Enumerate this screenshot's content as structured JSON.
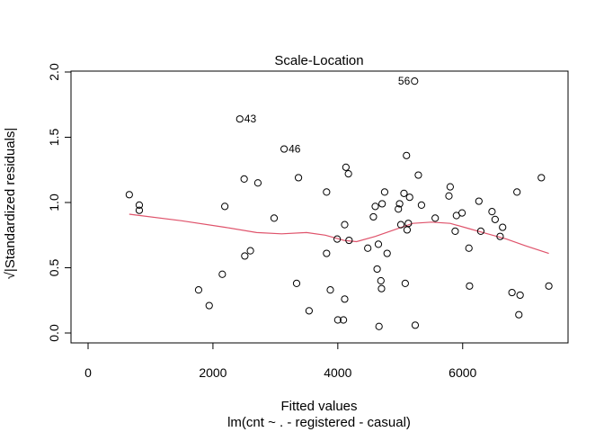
{
  "chart_data": {
    "type": "scatter",
    "title": "Scale-Location",
    "xlabel": "Fitted values",
    "xlabel_sub": "lm(cnt ~ . - registered - casual)",
    "ylabel": "√|Standardized residuals|",
    "xlim": [
      0,
      7400
    ],
    "ylim": [
      0,
      2.0
    ],
    "xticks": [
      0,
      2000,
      4000,
      6000
    ],
    "yticks": [
      0.0,
      0.5,
      1.0,
      1.5,
      2.0
    ],
    "xtick_labels": [
      "0",
      "2000",
      "4000",
      "6000"
    ],
    "ytick_labels": [
      "0.0",
      "0.5",
      "1.0",
      "1.5",
      "2.0"
    ],
    "grid": false,
    "point_color": "#000000",
    "smooth_color": "#DF536B",
    "points": [
      {
        "x": 5230,
        "y": 1.93,
        "label": "56"
      },
      {
        "x": 2430,
        "y": 1.64,
        "label": "43"
      },
      {
        "x": 3140,
        "y": 1.41,
        "label": "46"
      },
      {
        "x": 660,
        "y": 1.06
      },
      {
        "x": 820,
        "y": 0.98
      },
      {
        "x": 820,
        "y": 0.94
      },
      {
        "x": 1770,
        "y": 0.33
      },
      {
        "x": 1940,
        "y": 0.21
      },
      {
        "x": 2150,
        "y": 0.45
      },
      {
        "x": 2190,
        "y": 0.97
      },
      {
        "x": 2500,
        "y": 1.18
      },
      {
        "x": 2510,
        "y": 0.59
      },
      {
        "x": 2600,
        "y": 0.63
      },
      {
        "x": 2720,
        "y": 1.15
      },
      {
        "x": 2980,
        "y": 0.88
      },
      {
        "x": 3340,
        "y": 0.38
      },
      {
        "x": 3370,
        "y": 1.19
      },
      {
        "x": 3540,
        "y": 0.17
      },
      {
        "x": 3820,
        "y": 1.08
      },
      {
        "x": 3820,
        "y": 0.61
      },
      {
        "x": 3880,
        "y": 0.33
      },
      {
        "x": 3990,
        "y": 0.72
      },
      {
        "x": 4000,
        "y": 0.1
      },
      {
        "x": 4090,
        "y": 0.1
      },
      {
        "x": 4110,
        "y": 0.83
      },
      {
        "x": 4110,
        "y": 0.26
      },
      {
        "x": 4130,
        "y": 1.27
      },
      {
        "x": 4170,
        "y": 1.22
      },
      {
        "x": 4180,
        "y": 0.71
      },
      {
        "x": 4480,
        "y": 0.65
      },
      {
        "x": 4570,
        "y": 0.89
      },
      {
        "x": 4600,
        "y": 0.97
      },
      {
        "x": 4630,
        "y": 0.49
      },
      {
        "x": 4650,
        "y": 0.68
      },
      {
        "x": 4660,
        "y": 0.05
      },
      {
        "x": 4690,
        "y": 0.4
      },
      {
        "x": 4700,
        "y": 0.34
      },
      {
        "x": 4710,
        "y": 0.99
      },
      {
        "x": 4750,
        "y": 1.08
      },
      {
        "x": 4790,
        "y": 0.61
      },
      {
        "x": 4970,
        "y": 0.95
      },
      {
        "x": 4990,
        "y": 0.99
      },
      {
        "x": 5010,
        "y": 0.83
      },
      {
        "x": 5060,
        "y": 1.07
      },
      {
        "x": 5080,
        "y": 0.38
      },
      {
        "x": 5100,
        "y": 1.36
      },
      {
        "x": 5110,
        "y": 0.79
      },
      {
        "x": 5130,
        "y": 0.84
      },
      {
        "x": 5150,
        "y": 1.04
      },
      {
        "x": 5240,
        "y": 0.06
      },
      {
        "x": 5290,
        "y": 1.21
      },
      {
        "x": 5340,
        "y": 0.98
      },
      {
        "x": 5560,
        "y": 0.88
      },
      {
        "x": 5780,
        "y": 1.05
      },
      {
        "x": 5800,
        "y": 1.12
      },
      {
        "x": 5880,
        "y": 0.78
      },
      {
        "x": 5900,
        "y": 0.9
      },
      {
        "x": 5990,
        "y": 0.92
      },
      {
        "x": 6100,
        "y": 0.65
      },
      {
        "x": 6110,
        "y": 0.36
      },
      {
        "x": 6260,
        "y": 1.01
      },
      {
        "x": 6290,
        "y": 0.78
      },
      {
        "x": 6470,
        "y": 0.93
      },
      {
        "x": 6520,
        "y": 0.87
      },
      {
        "x": 6600,
        "y": 0.74
      },
      {
        "x": 6640,
        "y": 0.81
      },
      {
        "x": 6790,
        "y": 0.31
      },
      {
        "x": 6870,
        "y": 1.08
      },
      {
        "x": 6900,
        "y": 0.14
      },
      {
        "x": 6920,
        "y": 0.29
      },
      {
        "x": 7260,
        "y": 1.19
      },
      {
        "x": 7380,
        "y": 0.36
      }
    ],
    "smooth_line": [
      {
        "x": 660,
        "y": 0.91
      },
      {
        "x": 1500,
        "y": 0.86
      },
      {
        "x": 2200,
        "y": 0.81
      },
      {
        "x": 2700,
        "y": 0.77
      },
      {
        "x": 3100,
        "y": 0.76
      },
      {
        "x": 3500,
        "y": 0.77
      },
      {
        "x": 3800,
        "y": 0.75
      },
      {
        "x": 4100,
        "y": 0.71
      },
      {
        "x": 4300,
        "y": 0.7
      },
      {
        "x": 4600,
        "y": 0.74
      },
      {
        "x": 4900,
        "y": 0.79
      },
      {
        "x": 5200,
        "y": 0.84
      },
      {
        "x": 5500,
        "y": 0.85
      },
      {
        "x": 5800,
        "y": 0.84
      },
      {
        "x": 6100,
        "y": 0.8
      },
      {
        "x": 6400,
        "y": 0.76
      },
      {
        "x": 6700,
        "y": 0.72
      },
      {
        "x": 7000,
        "y": 0.67
      },
      {
        "x": 7380,
        "y": 0.61
      }
    ]
  }
}
